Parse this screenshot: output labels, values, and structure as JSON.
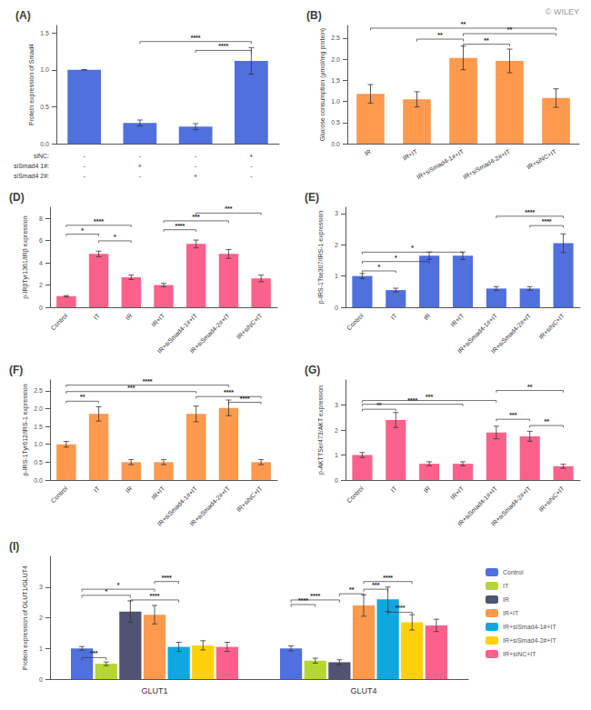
{
  "chart_data": [
    {
      "type": "bar",
      "title": "(A)",
      "categories": [
        null,
        null,
        null,
        null
      ],
      "condition_rows": [
        {
          "name": "siNC:",
          "signs": [
            "-",
            "-",
            "-",
            "+"
          ]
        },
        {
          "name": "siSmad4 1#:",
          "signs": [
            "-",
            "+",
            "-",
            "-"
          ]
        },
        {
          "name": "siSmad4 2#:",
          "signs": [
            "-",
            "-",
            "+",
            "-"
          ]
        }
      ],
      "values": [
        1.0,
        0.28,
        0.23,
        1.12
      ],
      "errors": [
        0.0,
        0.04,
        0.04,
        0.18
      ],
      "ylabel": "Protein expression of Smad4",
      "ylim": [
        0,
        1.6
      ],
      "yticks": [
        {
          "value": 0,
          "label": "0.0"
        },
        0.5,
        {
          "value": 1,
          "label": "1.0"
        },
        1.5
      ],
      "grid": false,
      "annotations": [
        {
          "text": "****",
          "from": 1,
          "to": 3,
          "y": 1.35
        },
        {
          "text": "****",
          "from": 2,
          "to": 3,
          "y": 1.23
        }
      ]
    },
    {
      "type": "bar",
      "title": "(B)",
      "categories": [
        "IR",
        "IR+IT",
        "IR+siSmad4-1#+IT",
        "IR+siSmad4-2#+IT",
        "IR+siNC+IT"
      ],
      "values": [
        1.18,
        1.05,
        2.03,
        1.96,
        1.08
      ],
      "errors": [
        0.22,
        0.18,
        0.28,
        0.28,
        0.22
      ],
      "ylabel": "Glucose consumption (μmol/mg protein)",
      "ylim": [
        0,
        2.8
      ],
      "yticks": [
        {
          "value": 0,
          "label": "0.0"
        },
        0.5,
        {
          "value": 1,
          "label": "1.0"
        },
        1.5,
        {
          "value": 2,
          "label": "2.0"
        },
        2.5
      ],
      "grid": false,
      "annotations": [
        {
          "text": "**",
          "from": "IR+IT",
          "to": "IR+siSmad4-1#+IT",
          "y": 2.42
        },
        {
          "text": "**",
          "from": "IR+siSmad4-1#+IT",
          "to": "IR+siSmad4-2#+IT",
          "y": 2.3
        },
        {
          "text": "**",
          "from": "IR+siSmad4-1#+IT",
          "to": "IR+siNC+IT",
          "y": 2.55
        },
        {
          "text": "**",
          "from": "IR",
          "to": "IR+siNC+IT",
          "y": 2.68
        },
        {
          "text": "© WILEY"
        }
      ]
    },
    {
      "type": "bar",
      "title": "(D)",
      "categories": [
        "Control",
        "IT",
        "IR",
        "IR+IT",
        "IR+siSmad4-1#+IT",
        "IR+siSmad4-2#+IT",
        "IR+siNC+IT"
      ],
      "values": [
        1.0,
        4.8,
        2.7,
        2.0,
        5.7,
        4.8,
        2.6
      ],
      "errors": [
        0.05,
        0.25,
        0.2,
        0.15,
        0.35,
        0.4,
        0.3
      ],
      "ylabel": "p-IRβTyr1361/IRβ expression",
      "ylim": [
        0,
        9
      ],
      "yticks": [
        0,
        2,
        4,
        6,
        8
      ],
      "grid": false,
      "annotations": [
        {
          "text": "****",
          "from": "Control",
          "to": "IR",
          "y": 7.2
        },
        {
          "text": "*",
          "from": "Control",
          "to": "IT",
          "y": 6.4
        },
        {
          "text": "*",
          "from": "IT",
          "to": "IR",
          "y": 5.8
        },
        {
          "text": "****",
          "from": "IR+IT",
          "to": "IR+siSmad4-1#+IT",
          "y": 6.8
        },
        {
          "text": "***",
          "from": "IR+IT",
          "to": "IR+siSmad4-2#+IT",
          "y": 7.6
        },
        {
          "text": "***",
          "from": "IR+siSmad4-1#+IT",
          "to": "IR+siNC+IT",
          "y": 8.3
        }
      ]
    },
    {
      "type": "bar",
      "title": "(E)",
      "categories": [
        "Control",
        "IT",
        "IR",
        "IR+IT",
        "IR+siSmad4-1#+IT",
        "IR+siSmad4-2#+IT",
        "IR+siNC+IT"
      ],
      "values": [
        1.0,
        0.55,
        1.65,
        1.65,
        0.6,
        0.6,
        2.05
      ],
      "errors": [
        0.08,
        0.06,
        0.12,
        0.12,
        0.06,
        0.06,
        0.3
      ],
      "ylabel": "p-IRS-1Tse307/IRS-1 expression",
      "ylim": [
        0,
        3.2
      ],
      "yticks": [
        0,
        1,
        2,
        3
      ],
      "grid": false,
      "annotations": [
        {
          "text": "*",
          "from": "Control",
          "to": "IT",
          "y": 1.1
        },
        {
          "text": "*",
          "from": "Control",
          "to": "IR",
          "y": 1.4
        },
        {
          "text": "*",
          "from": "Control",
          "to": "IR+IT",
          "y": 1.7
        },
        {
          "text": "****",
          "from": "IR+siSmad4-2#+IT",
          "to": "IR+siNC+IT",
          "y": 2.55
        },
        {
          "text": "****",
          "from": "IR+siSmad4-1#+IT",
          "to": "IR+siNC+IT",
          "y": 2.85
        }
      ]
    },
    {
      "type": "bar",
      "title": "(F)",
      "categories": [
        "Control",
        "IT",
        "IR",
        "IR+IT",
        "IR+siSmad4-1#+IT",
        "IR+siSmad4-2#+IT",
        "IR+siNC+IT"
      ],
      "values": [
        1.0,
        1.85,
        0.5,
        0.5,
        1.85,
        2.02,
        0.5
      ],
      "errors": [
        0.08,
        0.2,
        0.07,
        0.07,
        0.22,
        0.22,
        0.07
      ],
      "ylabel": "p-IRS-1Tyr612/IRS-1 expression",
      "ylim": [
        0,
        2.8
      ],
      "yticks": [
        {
          "value": 0,
          "label": "0.0"
        },
        0.5,
        {
          "value": 1,
          "label": "1.0"
        },
        1.5,
        {
          "value": 2,
          "label": "2.0"
        },
        2.5
      ],
      "grid": false,
      "annotations": [
        {
          "text": "**",
          "from": "Control",
          "to": "IT",
          "y": 2.15
        },
        {
          "text": "***",
          "from": "Control",
          "to": "IR+siSmad4-1#+IT",
          "y": 2.42
        },
        {
          "text": "****",
          "from": "Control",
          "to": "IR+siSmad4-2#+IT",
          "y": 2.6
        },
        {
          "text": "****",
          "from": "IR+siSmad4-1#+IT",
          "to": "IR+siNC+IT",
          "y": 2.28
        },
        {
          "text": "****",
          "from": "IR+siSmad4-2#+IT",
          "to": "IR+siNC+IT",
          "y": 2.12
        }
      ]
    },
    {
      "type": "bar",
      "title": "(G)",
      "categories": [
        "Control",
        "IT",
        "IR",
        "IR+IT",
        "IR+siSmad4-1#+IT",
        "IR+siSmad4-2#+IT",
        "IR+siNC+IT"
      ],
      "values": [
        1.0,
        2.4,
        0.65,
        0.65,
        1.9,
        1.75,
        0.55
      ],
      "errors": [
        0.1,
        0.3,
        0.08,
        0.08,
        0.25,
        0.2,
        0.08
      ],
      "ylabel": "p-AKTTSer473/AKT expression",
      "ylim": [
        0,
        4.0
      ],
      "yticks": [
        0,
        1,
        2,
        3
      ],
      "grid": false,
      "annotations": [
        {
          "text": "**",
          "from": "Control",
          "to": "IT",
          "y": 2.75
        },
        {
          "text": "***",
          "from": "Control",
          "to": "IR+siSmad4-1#+IT",
          "y": 3.1
        },
        {
          "text": "****",
          "from": "Control",
          "to": "IR+IT",
          "y": 2.95
        },
        {
          "text": "***",
          "from": "IR+siSmad4-1#+IT",
          "to": "IR+siSmad4-2#+IT",
          "y": 2.35
        },
        {
          "text": "**",
          "from": "IR+siSmad4-1#+IT",
          "to": "IR+siNC+IT",
          "y": 3.5
        },
        {
          "text": "**",
          "from": "IR+siSmad4-2#+IT",
          "to": "IR+siNC+IT",
          "y": 2.1
        }
      ]
    },
    {
      "type": "bar",
      "title": "(I)",
      "categories": [
        "GLUT1",
        "GLUT4"
      ],
      "series": [
        {
          "name": "Control",
          "values": [
            1.0,
            1.0
          ],
          "errors": [
            0.06,
            0.08
          ]
        },
        {
          "name": "IT",
          "values": [
            0.5,
            0.6
          ],
          "errors": [
            0.06,
            0.08
          ]
        },
        {
          "name": "IR",
          "values": [
            2.2,
            0.55
          ],
          "errors": [
            0.35,
            0.08
          ]
        },
        {
          "name": "IR+IT",
          "values": [
            2.1,
            2.4
          ],
          "errors": [
            0.3,
            0.35
          ]
        },
        {
          "name": "IR+siSmad4-1#+IT",
          "values": [
            1.05,
            2.6
          ],
          "errors": [
            0.15,
            0.4
          ]
        },
        {
          "name": "IR+siSmad4-2#+IT",
          "values": [
            1.1,
            1.85
          ],
          "errors": [
            0.15,
            0.25
          ]
        },
        {
          "name": "IR+siNC+IT",
          "values": [
            1.05,
            1.75
          ],
          "errors": [
            0.15,
            0.2
          ]
        }
      ],
      "ylabel": "Protein expression of GLUT1/GLUT4",
      "ylim": [
        0,
        4.0
      ],
      "yticks": [
        0,
        1,
        2,
        3
      ],
      "grid": false,
      "legend": "right",
      "annotations": [
        {
          "text": "*",
          "category": "GLUT1",
          "from": "Control",
          "to": "IR",
          "y": 2.65
        },
        {
          "text": "*",
          "category": "GLUT1",
          "from": "Control",
          "to": "IR+IT",
          "y": 2.85
        },
        {
          "text": "***",
          "category": "GLUT1",
          "from": "Control",
          "to": "IT",
          "y": 0.62
        },
        {
          "text": "****",
          "category": "GLUT1",
          "from": "IR",
          "to": "IR+siSmad4-1#+IT",
          "y": 2.5
        },
        {
          "text": "****",
          "category": "GLUT1",
          "from": "IR+IT",
          "to": "IR+siSmad4-1#+IT",
          "y": 3.1
        },
        {
          "text": "****",
          "category": "GLUT4",
          "from": "Control",
          "to": "IR",
          "y": 2.5
        },
        {
          "text": "****",
          "category": "GLUT4",
          "from": "Control",
          "to": "IT",
          "y": 2.35
        },
        {
          "text": "**",
          "category": "GLUT4",
          "from": "IR",
          "to": "IR+IT",
          "y": 2.7
        },
        {
          "text": "***",
          "category": "GLUT4",
          "from": "IR+IT",
          "to": "IR+siSmad4-1#+IT",
          "y": 2.85
        },
        {
          "text": "****",
          "category": "GLUT4",
          "from": "IR+IT",
          "to": "IR+siSmad4-2#+IT",
          "y": 3.1
        },
        {
          "text": "****",
          "category": "GLUT4",
          "from": "IR+siSmad4-1#+IT",
          "to": "IR+siSmad4-2#+IT",
          "y": 2.1
        }
      ]
    }
  ]
}
